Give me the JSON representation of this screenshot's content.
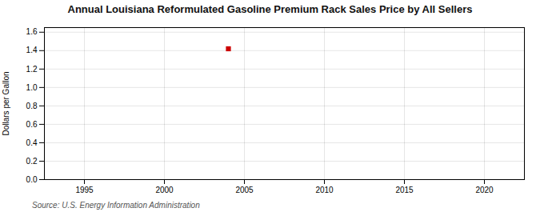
{
  "chart_data": {
    "type": "scatter",
    "title": "Annual Louisiana Reformulated Gasoline Premium Rack Sales Price by All Sellers",
    "ylabel": "Dollars per Gallon",
    "annotations": [
      "Source: U.S. Energy Information Administration"
    ],
    "x": [
      2004
    ],
    "values": [
      1.42
    ],
    "color": "#cc0000",
    "marker": "square",
    "xlim": [
      1992.5,
      2022.5
    ],
    "xticks": [
      1995,
      2000,
      2005,
      2010,
      2015,
      2020
    ],
    "ylim": [
      0.0,
      1.65
    ],
    "yticks": [
      {
        "value": 0.0,
        "label": "0.0"
      },
      0.2,
      0.4,
      0.6,
      0.8,
      {
        "value": 1.0,
        "label": "1.0"
      },
      1.2,
      1.4,
      1.6
    ],
    "grid": true
  }
}
